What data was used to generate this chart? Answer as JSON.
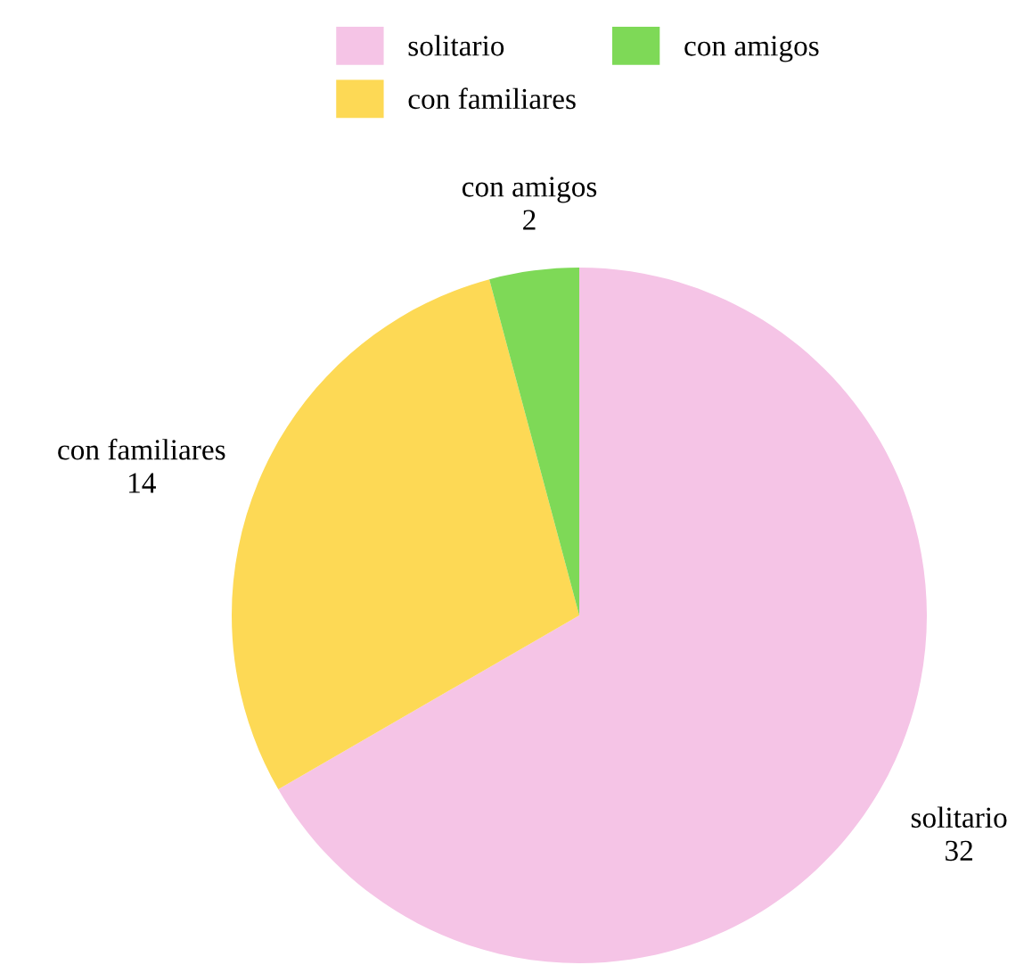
{
  "chart_data": {
    "type": "pie",
    "categories": [
      "solitario",
      "con familiares",
      "con amigos"
    ],
    "values": [
      32,
      14,
      2
    ],
    "colors": [
      "#f5c4e6",
      "#fdd955",
      "#7ed957"
    ],
    "data_labels": true,
    "legend": "top"
  }
}
